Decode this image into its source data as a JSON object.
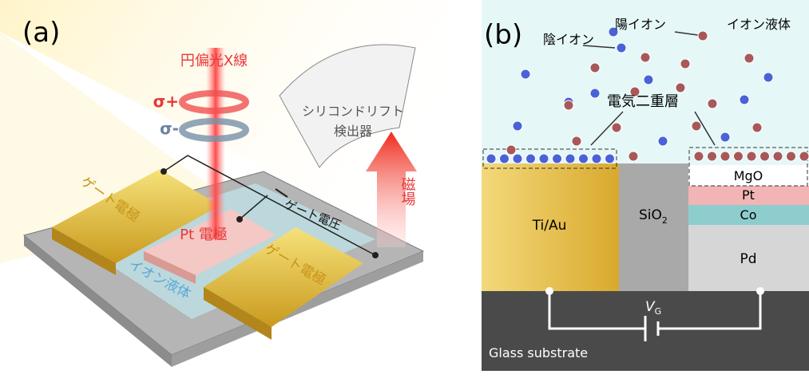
{
  "panel_a": {
    "label": "(a)",
    "xray": "円偏光X線",
    "sigma_plus": "σ+",
    "sigma_minus": "σ-",
    "detector": [
      "シリコンドリフト",
      "検出器"
    ],
    "gate_left": "ゲート電極",
    "gate_voltage": "ゲート電圧",
    "field": "磁場",
    "pt_electrode": "Pt 電極",
    "ionic_liquid": "イオン液体",
    "gate_right": "ゲート電極"
  },
  "panel_b": {
    "label": "(b)",
    "anion": "陰イオン",
    "cation": "陽イオン",
    "ionic_liquid": "イオン液体",
    "edl": "電気二重層",
    "mgo": "MgO",
    "pt": "Pt",
    "co": "Co",
    "tiau": "Ti/Au",
    "sio2": {
      "base": "SiO",
      "sub": "2"
    },
    "pd": "Pd",
    "vg": {
      "base": "V",
      "sub": "G"
    },
    "glass": "Glass substrate"
  }
}
